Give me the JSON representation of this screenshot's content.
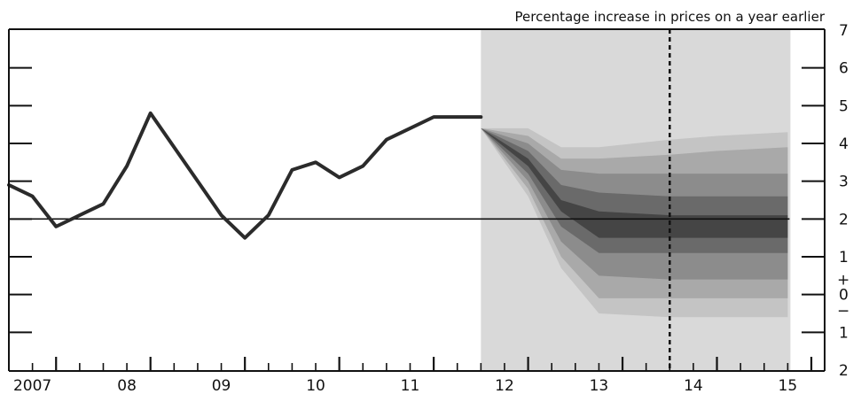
{
  "chart_data": {
    "type": "line",
    "title": "Percentage increase in prices on a year earlier",
    "xlabel": "",
    "ylabel": "",
    "ylim": [
      -2,
      7
    ],
    "y_ticks": [
      {
        "value": 7,
        "label": "7"
      },
      {
        "value": 6,
        "label": "6"
      },
      {
        "value": 5,
        "label": "5"
      },
      {
        "value": 4,
        "label": "4"
      },
      {
        "value": 3,
        "label": "3"
      },
      {
        "value": 2,
        "label": "2"
      },
      {
        "value": 1,
        "label": "1"
      },
      {
        "value": 0,
        "label": "0"
      },
      {
        "value": -1,
        "label": "1"
      },
      {
        "value": -2,
        "label": "2"
      }
    ],
    "y_sign_marker": "+−",
    "x_range": [
      2006.5,
      2015.0
    ],
    "x_ticks": [
      {
        "value": 2006.75,
        "label": "2007"
      },
      {
        "value": 2007.75,
        "label": "08"
      },
      {
        "value": 2008.75,
        "label": "09"
      },
      {
        "value": 2009.75,
        "label": "10"
      },
      {
        "value": 2010.75,
        "label": "11"
      },
      {
        "value": 2011.75,
        "label": "12"
      },
      {
        "value": 2012.75,
        "label": "13"
      },
      {
        "value": 2013.75,
        "label": "14"
      },
      {
        "value": 2014.75,
        "label": "15"
      }
    ],
    "projection_start": 2011.5,
    "projection_end": 2014.75,
    "forecast_marker_x": 2013.5,
    "target_line": 2.0,
    "series": [
      {
        "x": [
          2006.5,
          2006.75,
          2007.0,
          2007.25,
          2007.5,
          2007.75,
          2008.0,
          2008.25,
          2008.5,
          2008.75,
          2009.0,
          2009.25,
          2009.5,
          2009.75,
          2010.0,
          2010.25,
          2010.5,
          2010.75,
          2011.0,
          2011.25,
          2011.5
        ],
        "values": [
          2.9,
          2.6,
          1.8,
          2.1,
          2.4,
          3.4,
          4.8,
          3.9,
          3.0,
          2.1,
          1.5,
          2.1,
          3.3,
          3.5,
          3.1,
          3.4,
          4.1,
          4.4,
          4.7,
          4.7,
          4.7
        ]
      }
    ],
    "fan_bands": [
      {
        "color": "#c4c4c4",
        "x": [
          2011.5,
          2012.0,
          2012.35,
          2012.75,
          2013.5,
          2014.0,
          2014.75
        ],
        "upper": [
          4.4,
          4.4,
          3.9,
          3.9,
          4.1,
          4.2,
          4.3
        ],
        "lower": [
          4.4,
          2.6,
          0.7,
          -0.5,
          -0.6,
          -0.6,
          -0.6
        ]
      },
      {
        "color": "#a9a9a9",
        "x": [
          2011.5,
          2012.0,
          2012.35,
          2012.75,
          2013.5,
          2014.0,
          2014.75
        ],
        "upper": [
          4.4,
          4.2,
          3.6,
          3.6,
          3.7,
          3.8,
          3.9
        ],
        "lower": [
          4.4,
          2.8,
          1.0,
          -0.1,
          -0.1,
          -0.1,
          -0.1
        ]
      },
      {
        "color": "#8c8c8c",
        "x": [
          2011.5,
          2012.0,
          2012.35,
          2012.75,
          2013.5,
          2014.0,
          2014.75
        ],
        "upper": [
          4.4,
          4.0,
          3.3,
          3.2,
          3.2,
          3.2,
          3.2
        ],
        "lower": [
          4.4,
          3.0,
          1.4,
          0.5,
          0.4,
          0.4,
          0.4
        ]
      },
      {
        "color": "#6a6a6a",
        "x": [
          2011.5,
          2012.0,
          2012.35,
          2012.75,
          2013.5,
          2014.0,
          2014.75
        ],
        "upper": [
          4.4,
          3.8,
          2.9,
          2.7,
          2.6,
          2.6,
          2.6
        ],
        "lower": [
          4.4,
          3.2,
          1.8,
          1.1,
          1.1,
          1.1,
          1.1
        ]
      },
      {
        "color": "#454545",
        "x": [
          2011.5,
          2012.0,
          2012.35,
          2012.75,
          2013.5,
          2014.0,
          2014.75
        ],
        "upper": [
          4.4,
          3.6,
          2.5,
          2.2,
          2.1,
          2.1,
          2.1
        ],
        "lower": [
          4.4,
          3.4,
          2.2,
          1.5,
          1.5,
          1.5,
          1.5
        ]
      }
    ],
    "colors": {
      "line": "#2b2b2b",
      "projection_bg": "#d9d9d9",
      "axis": "#111111"
    },
    "grid": false
  }
}
